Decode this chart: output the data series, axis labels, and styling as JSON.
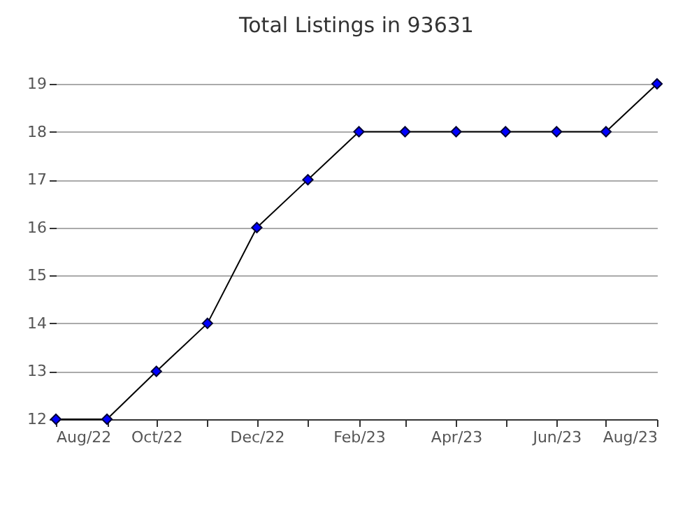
{
  "chart_data": {
    "type": "line",
    "title": "Total Listings in 93631",
    "x": [
      "2022-08",
      "2022-09",
      "2022-10",
      "2022-11",
      "2022-12",
      "2023-01",
      "2023-02",
      "2023-03",
      "2023-04",
      "2023-05",
      "2023-06",
      "2023-07",
      "2023-08"
    ],
    "series": [
      {
        "color": "#0000ff",
        "values": [
          12,
          12,
          13,
          14,
          16,
          17,
          18,
          18,
          18,
          18,
          18,
          18,
          19
        ]
      }
    ],
    "marker": "diamond",
    "xlim": [
      "2022-08",
      "2023-08"
    ],
    "xticks": [
      {
        "value": "2022-08",
        "label": "Aug/22"
      },
      {
        "value": "2022-09",
        "label": null
      },
      {
        "value": "2022-10",
        "label": "Oct/22"
      },
      {
        "value": "2022-11",
        "label": null
      },
      {
        "value": "2022-12",
        "label": "Dec/22"
      },
      {
        "value": "2023-01",
        "label": null
      },
      {
        "value": "2023-02",
        "label": "Feb/23"
      },
      {
        "value": "2023-03",
        "label": null
      },
      {
        "value": "2023-04",
        "label": "Apr/23"
      },
      {
        "value": "2023-05",
        "label": null
      },
      {
        "value": "2023-06",
        "label": "Jun/23"
      },
      {
        "value": "2023-07",
        "label": null
      },
      {
        "value": "2023-08",
        "label": "Aug/23"
      }
    ],
    "ylim": [
      12,
      19
    ],
    "yticks": [
      12,
      13,
      14,
      15,
      16,
      17,
      18,
      19
    ],
    "grid": "y"
  }
}
